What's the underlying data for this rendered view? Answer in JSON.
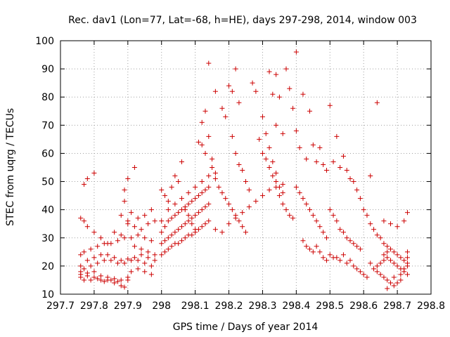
{
  "chart_data": {
    "type": "scatter",
    "title": "Rec. dav1 (Lon=77, Lat=-68, h=HE), days 297-298, 2014, window 003",
    "xlabel": "GPS time / Days of year 2014",
    "ylabel": "STEC from uqrg / TECUs",
    "xlim": [
      297.7,
      298.8
    ],
    "ylim": [
      10,
      100
    ],
    "x_ticks": [
      297.7,
      297.8,
      297.9,
      298.0,
      298.1,
      298.2,
      298.3,
      298.4,
      298.5,
      298.6,
      298.7,
      298.8
    ],
    "x_tick_labels": [
      "297.7",
      "297.8",
      "297.9",
      "298",
      "298.1",
      "298.2",
      "298.3",
      "298.4",
      "298.5",
      "298.6",
      "298.7",
      "298.8"
    ],
    "y_ticks": [
      10,
      20,
      30,
      40,
      50,
      60,
      70,
      80,
      90,
      100
    ],
    "y_tick_labels": [
      "10",
      "20",
      "30",
      "40",
      "50",
      "60",
      "70",
      "80",
      "90",
      "100"
    ],
    "grid": true,
    "marker": "plus",
    "color": "#cc0000",
    "points": [
      [
        297.76,
        16
      ],
      [
        297.77,
        15
      ],
      [
        297.78,
        16.5
      ],
      [
        297.79,
        15
      ],
      [
        297.8,
        16
      ],
      [
        297.81,
        15.5
      ],
      [
        297.82,
        15
      ],
      [
        297.83,
        14.5
      ],
      [
        297.84,
        15
      ],
      [
        297.85,
        15
      ],
      [
        297.86,
        14
      ],
      [
        297.87,
        14.5
      ],
      [
        297.88,
        13
      ],
      [
        297.89,
        12.5
      ],
      [
        297.9,
        15
      ],
      [
        297.76,
        17
      ],
      [
        297.78,
        17.5
      ],
      [
        297.8,
        18
      ],
      [
        297.82,
        16.5
      ],
      [
        297.84,
        16
      ],
      [
        297.86,
        15.5
      ],
      [
        297.88,
        15
      ],
      [
        297.9,
        16
      ],
      [
        297.76,
        18
      ],
      [
        297.77,
        19
      ],
      [
        297.79,
        20
      ],
      [
        297.81,
        21
      ],
      [
        297.83,
        22
      ],
      [
        297.85,
        22
      ],
      [
        297.87,
        21
      ],
      [
        297.89,
        21
      ],
      [
        297.91,
        22
      ],
      [
        297.93,
        22
      ],
      [
        297.95,
        21
      ],
      [
        297.97,
        20
      ],
      [
        297.76,
        20
      ],
      [
        297.78,
        22
      ],
      [
        297.8,
        23
      ],
      [
        297.82,
        24
      ],
      [
        297.84,
        24
      ],
      [
        297.86,
        23
      ],
      [
        297.88,
        22
      ],
      [
        297.9,
        22.5
      ],
      [
        297.92,
        23
      ],
      [
        297.94,
        24
      ],
      [
        297.96,
        23
      ],
      [
        297.98,
        22
      ],
      [
        297.76,
        24
      ],
      [
        297.77,
        25
      ],
      [
        297.79,
        26
      ],
      [
        297.81,
        27
      ],
      [
        297.83,
        28
      ],
      [
        297.85,
        28
      ],
      [
        297.87,
        29
      ],
      [
        297.89,
        30
      ],
      [
        297.91,
        30
      ],
      [
        297.93,
        31
      ],
      [
        297.95,
        30
      ],
      [
        297.97,
        29
      ],
      [
        297.76,
        37
      ],
      [
        297.77,
        36
      ],
      [
        297.78,
        34
      ],
      [
        297.8,
        32
      ],
      [
        297.82,
        30
      ],
      [
        297.84,
        28
      ],
      [
        297.86,
        32
      ],
      [
        297.88,
        31
      ],
      [
        297.9,
        35
      ],
      [
        297.92,
        34
      ],
      [
        297.94,
        33
      ],
      [
        297.96,
        35
      ],
      [
        297.98,
        36
      ],
      [
        297.77,
        49
      ],
      [
        297.78,
        51
      ],
      [
        297.8,
        53
      ],
      [
        297.89,
        47
      ],
      [
        297.9,
        51
      ],
      [
        297.92,
        55
      ],
      [
        297.89,
        43
      ],
      [
        297.91,
        39
      ],
      [
        297.93,
        37
      ],
      [
        297.95,
        38
      ],
      [
        297.97,
        40
      ],
      [
        297.88,
        38
      ],
      [
        297.9,
        36
      ],
      [
        297.92,
        27
      ],
      [
        297.94,
        26
      ],
      [
        297.96,
        25
      ],
      [
        297.98,
        24
      ],
      [
        297.97,
        17
      ],
      [
        297.95,
        18
      ],
      [
        297.93,
        19
      ],
      [
        297.91,
        18
      ],
      [
        298.0,
        24
      ],
      [
        298.01,
        25
      ],
      [
        298.02,
        26
      ],
      [
        298.03,
        27
      ],
      [
        298.04,
        28
      ],
      [
        298.05,
        28
      ],
      [
        298.06,
        29
      ],
      [
        298.07,
        30
      ],
      [
        298.08,
        31
      ],
      [
        298.09,
        31
      ],
      [
        298.1,
        32
      ],
      [
        298.11,
        33
      ],
      [
        298.12,
        34
      ],
      [
        298.13,
        35
      ],
      [
        298.14,
        36
      ],
      [
        298.0,
        28
      ],
      [
        298.01,
        29
      ],
      [
        298.02,
        30
      ],
      [
        298.03,
        31
      ],
      [
        298.04,
        32
      ],
      [
        298.05,
        33
      ],
      [
        298.06,
        34
      ],
      [
        298.07,
        35
      ],
      [
        298.08,
        36
      ],
      [
        298.09,
        37
      ],
      [
        298.1,
        38
      ],
      [
        298.11,
        39
      ],
      [
        298.12,
        40
      ],
      [
        298.13,
        41
      ],
      [
        298.14,
        42
      ],
      [
        298.0,
        32
      ],
      [
        298.01,
        34
      ],
      [
        298.02,
        36
      ],
      [
        298.03,
        37
      ],
      [
        298.04,
        38
      ],
      [
        298.05,
        39
      ],
      [
        298.06,
        40
      ],
      [
        298.07,
        41
      ],
      [
        298.08,
        42
      ],
      [
        298.09,
        43
      ],
      [
        298.1,
        44
      ],
      [
        298.11,
        45
      ],
      [
        298.12,
        46
      ],
      [
        298.13,
        47
      ],
      [
        298.14,
        48
      ],
      [
        298.0,
        36
      ],
      [
        298.02,
        40
      ],
      [
        298.04,
        42
      ],
      [
        298.06,
        44
      ],
      [
        298.08,
        46
      ],
      [
        298.1,
        48
      ],
      [
        298.12,
        50
      ],
      [
        298.14,
        52
      ],
      [
        298.16,
        53
      ],
      [
        298.0,
        47
      ],
      [
        298.01,
        45
      ],
      [
        298.02,
        43
      ],
      [
        298.03,
        48
      ],
      [
        298.04,
        52
      ],
      [
        298.05,
        50
      ],
      [
        298.06,
        57
      ],
      [
        298.07,
        40
      ],
      [
        298.08,
        38
      ],
      [
        298.09,
        35
      ],
      [
        298.1,
        33
      ],
      [
        298.11,
        64
      ],
      [
        298.12,
        63
      ],
      [
        298.13,
        60
      ],
      [
        298.12,
        71
      ],
      [
        298.13,
        75
      ],
      [
        298.14,
        66
      ],
      [
        298.15,
        58
      ],
      [
        298.14,
        92
      ],
      [
        298.16,
        82
      ],
      [
        298.18,
        76
      ],
      [
        298.19,
        73
      ],
      [
        298.15,
        55
      ],
      [
        298.16,
        51
      ],
      [
        298.17,
        48
      ],
      [
        298.18,
        46
      ],
      [
        298.19,
        44
      ],
      [
        298.2,
        42
      ],
      [
        298.21,
        40
      ],
      [
        298.22,
        38
      ],
      [
        298.23,
        36
      ],
      [
        298.24,
        34
      ],
      [
        298.25,
        32
      ],
      [
        298.16,
        33
      ],
      [
        298.18,
        32
      ],
      [
        298.2,
        35
      ],
      [
        298.22,
        37
      ],
      [
        298.24,
        39
      ],
      [
        298.26,
        41
      ],
      [
        298.28,
        43
      ],
      [
        298.3,
        45
      ],
      [
        298.32,
        47
      ],
      [
        298.34,
        48
      ],
      [
        298.36,
        49
      ],
      [
        298.2,
        84
      ],
      [
        298.21,
        82
      ],
      [
        298.22,
        90
      ],
      [
        298.23,
        78
      ],
      [
        298.21,
        66
      ],
      [
        298.22,
        60
      ],
      [
        298.23,
        56
      ],
      [
        298.24,
        54
      ],
      [
        298.25,
        50
      ],
      [
        298.26,
        47
      ],
      [
        298.27,
        85
      ],
      [
        298.28,
        82
      ],
      [
        298.29,
        65
      ],
      [
        298.3,
        60
      ],
      [
        298.31,
        58
      ],
      [
        298.32,
        55
      ],
      [
        298.33,
        52
      ],
      [
        298.34,
        50
      ],
      [
        298.35,
        48
      ],
      [
        298.36,
        46
      ],
      [
        298.32,
        89
      ],
      [
        298.34,
        88
      ],
      [
        298.33,
        81
      ],
      [
        298.35,
        80
      ],
      [
        298.34,
        70
      ],
      [
        298.36,
        67
      ],
      [
        298.37,
        90
      ],
      [
        298.38,
        83
      ],
      [
        298.39,
        76
      ],
      [
        298.4,
        96
      ],
      [
        298.3,
        73
      ],
      [
        298.31,
        67
      ],
      [
        298.32,
        62
      ],
      [
        298.33,
        57
      ],
      [
        298.34,
        53
      ],
      [
        298.35,
        45
      ],
      [
        298.36,
        42
      ],
      [
        298.37,
        40
      ],
      [
        298.38,
        38
      ],
      [
        298.39,
        37
      ],
      [
        298.4,
        68
      ],
      [
        298.41,
        62
      ],
      [
        298.42,
        81
      ],
      [
        298.43,
        58
      ],
      [
        298.44,
        75
      ],
      [
        298.45,
        63
      ],
      [
        298.46,
        57
      ],
      [
        298.47,
        62
      ],
      [
        298.48,
        56
      ],
      [
        298.49,
        54
      ],
      [
        298.4,
        48
      ],
      [
        298.41,
        46
      ],
      [
        298.42,
        44
      ],
      [
        298.43,
        42
      ],
      [
        298.44,
        40
      ],
      [
        298.45,
        38
      ],
      [
        298.46,
        36
      ],
      [
        298.47,
        34
      ],
      [
        298.48,
        32
      ],
      [
        298.49,
        30
      ],
      [
        298.42,
        29
      ],
      [
        298.43,
        27
      ],
      [
        298.44,
        26
      ],
      [
        298.45,
        25
      ],
      [
        298.46,
        27
      ],
      [
        298.47,
        25
      ],
      [
        298.48,
        23
      ],
      [
        298.49,
        22
      ],
      [
        298.5,
        24
      ],
      [
        298.51,
        23
      ],
      [
        298.5,
        77
      ],
      [
        298.52,
        66
      ],
      [
        298.51,
        57
      ],
      [
        298.53,
        55
      ],
      [
        298.54,
        59
      ],
      [
        298.55,
        54
      ],
      [
        298.56,
        51
      ],
      [
        298.57,
        50
      ],
      [
        298.58,
        47
      ],
      [
        298.59,
        44
      ],
      [
        298.5,
        40
      ],
      [
        298.51,
        38
      ],
      [
        298.52,
        36
      ],
      [
        298.53,
        33
      ],
      [
        298.54,
        32
      ],
      [
        298.55,
        30
      ],
      [
        298.56,
        29
      ],
      [
        298.57,
        28
      ],
      [
        298.58,
        27
      ],
      [
        298.59,
        26
      ],
      [
        298.52,
        23
      ],
      [
        298.53,
        22
      ],
      [
        298.54,
        24
      ],
      [
        298.55,
        21
      ],
      [
        298.56,
        22
      ],
      [
        298.57,
        20
      ],
      [
        298.58,
        19
      ],
      [
        298.59,
        18
      ],
      [
        298.6,
        17
      ],
      [
        298.61,
        16
      ],
      [
        298.62,
        52
      ],
      [
        298.64,
        78
      ],
      [
        298.6,
        40
      ],
      [
        298.61,
        38
      ],
      [
        298.62,
        35
      ],
      [
        298.63,
        33
      ],
      [
        298.64,
        31
      ],
      [
        298.65,
        30
      ],
      [
        298.66,
        28
      ],
      [
        298.67,
        27
      ],
      [
        298.62,
        21
      ],
      [
        298.63,
        19
      ],
      [
        298.64,
        18
      ],
      [
        298.65,
        17
      ],
      [
        298.66,
        16
      ],
      [
        298.67,
        15
      ],
      [
        298.68,
        14
      ],
      [
        298.69,
        13
      ],
      [
        298.7,
        14
      ],
      [
        298.71,
        15
      ],
      [
        298.64,
        20
      ],
      [
        298.65,
        21
      ],
      [
        298.66,
        22
      ],
      [
        298.67,
        23
      ],
      [
        298.68,
        22
      ],
      [
        298.69,
        21
      ],
      [
        298.7,
        20
      ],
      [
        298.71,
        19
      ],
      [
        298.72,
        18
      ],
      [
        298.73,
        17
      ],
      [
        298.66,
        24
      ],
      [
        298.67,
        25
      ],
      [
        298.68,
        26
      ],
      [
        298.69,
        25
      ],
      [
        298.7,
        24
      ],
      [
        298.71,
        23
      ],
      [
        298.72,
        22
      ],
      [
        298.73,
        21
      ],
      [
        298.73,
        20
      ],
      [
        298.72,
        19
      ],
      [
        298.68,
        35
      ],
      [
        298.7,
        34
      ],
      [
        298.72,
        36
      ],
      [
        298.73,
        39
      ],
      [
        298.66,
        36
      ],
      [
        298.67,
        12
      ],
      [
        298.69,
        16
      ],
      [
        298.71,
        17
      ],
      [
        298.73,
        23
      ],
      [
        298.73,
        25
      ]
    ]
  }
}
